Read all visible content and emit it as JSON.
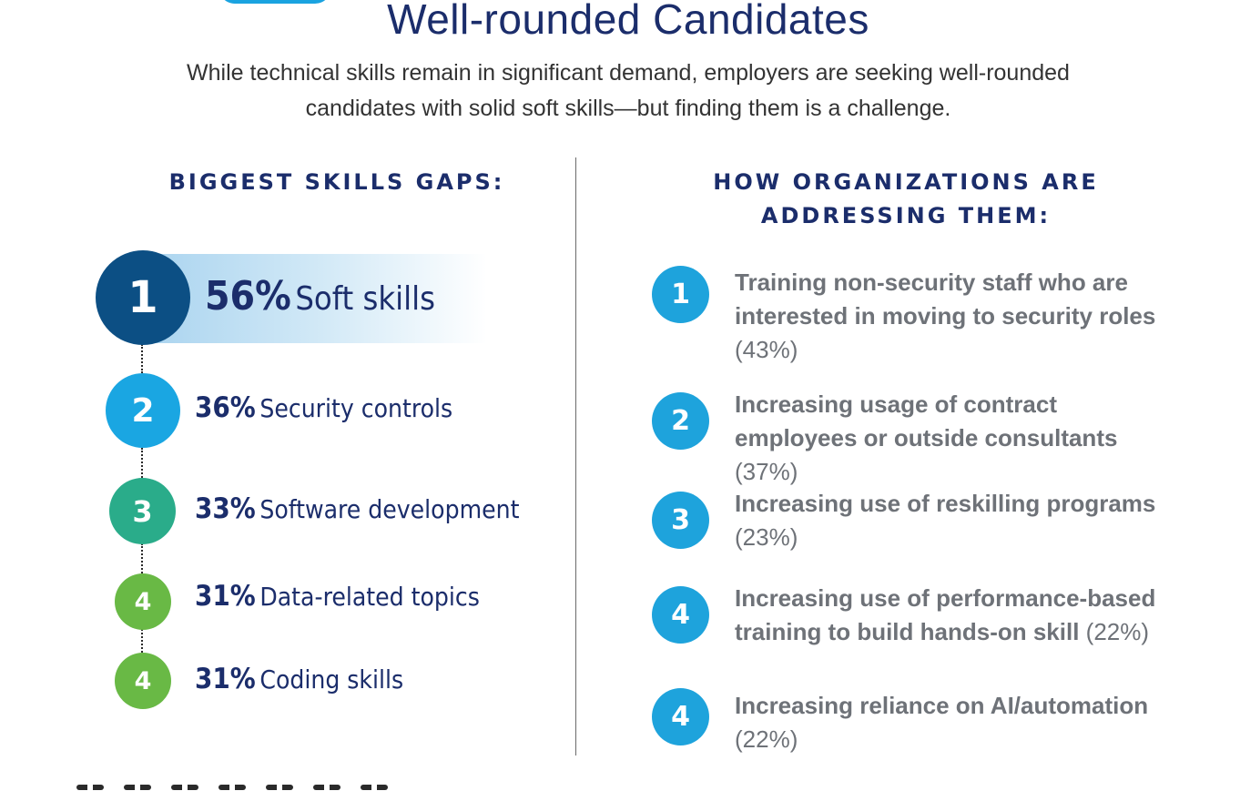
{
  "header": {
    "title": "Well-rounded Candidates",
    "subtitle_line1": "While technical skills remain in significant demand, employers are seeking well-rounded",
    "subtitle_line2": "candidates with solid soft skills—but finding them is a challenge."
  },
  "skills_gaps": {
    "heading": "BIGGEST SKILLS GAPS:",
    "items": [
      {
        "rank": "1",
        "percent": "56%",
        "label": "Soft skills",
        "color": "#0c4f84"
      },
      {
        "rank": "2",
        "percent": "36%",
        "label": "Security controls",
        "color": "#1aa6e2"
      },
      {
        "rank": "3",
        "percent": "33%",
        "label": "Software development",
        "color": "#2aac8a"
      },
      {
        "rank": "4",
        "percent": "31%",
        "label": "Data-related topics",
        "color": "#69b945"
      },
      {
        "rank": "4",
        "percent": "31%",
        "label": "Coding skills",
        "color": "#69b945"
      }
    ]
  },
  "addressing": {
    "heading_line1": "HOW ORGANIZATIONS ARE",
    "heading_line2": "ADDRESSING THEM:",
    "items": [
      {
        "rank": "1",
        "text": "Training non-security staff who are interested in moving to security roles",
        "percent": "(43%)"
      },
      {
        "rank": "2",
        "text": "Increasing usage of contract employees or outside consultants",
        "percent": "(37%)"
      },
      {
        "rank": "3",
        "text": "Increasing use of reskilling programs",
        "percent": "(23%)"
      },
      {
        "rank": "4",
        "text": "Increasing use of performance-based training to build hands-on skill",
        "percent": "(22%)"
      },
      {
        "rank": "4",
        "text": "Increasing reliance on AI/automation",
        "percent": "(22%)"
      }
    ]
  },
  "colors": {
    "navy": "#1b2d6b",
    "right_circle": "#1ea3dc",
    "right_text": "#6e7278"
  }
}
